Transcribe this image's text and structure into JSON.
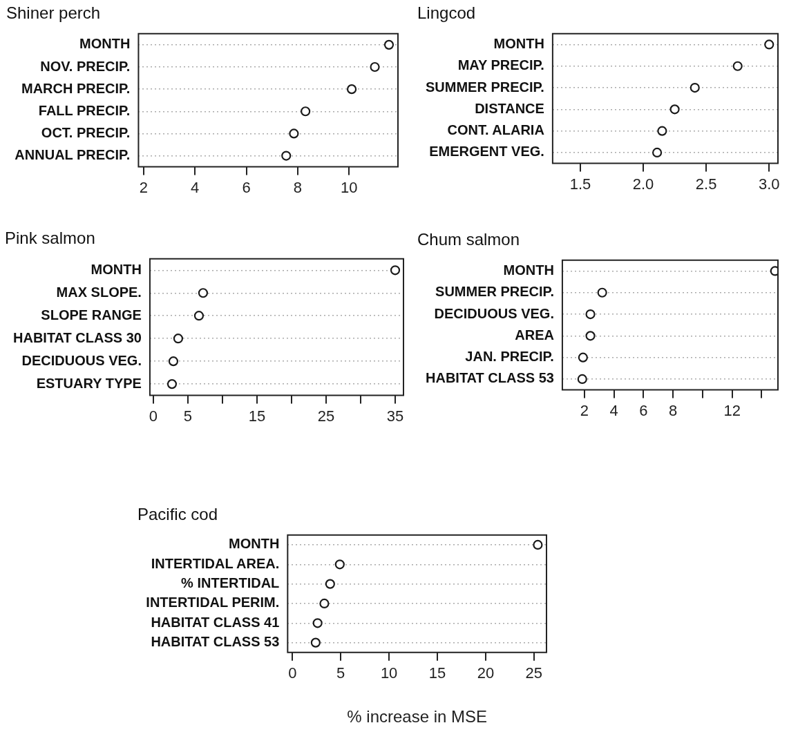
{
  "chart_data": [
    {
      "type": "scatter",
      "orientation": "horizontal",
      "title": "Shiner perch",
      "categories": [
        "MONTH",
        "NOV. PRECIP.",
        "MARCH PRECIP.",
        "FALL PRECIP.",
        "OCT. PRECIP.",
        "ANNUAL PRECIP."
      ],
      "values": [
        11.55,
        11.0,
        10.1,
        8.3,
        7.85,
        7.55
      ],
      "color": "#1a1a1a",
      "marker": "circle",
      "grid": "y",
      "xlim": [
        1.8,
        11.9
      ],
      "xticks": [
        2,
        4,
        6,
        8,
        10
      ]
    },
    {
      "type": "scatter",
      "orientation": "horizontal",
      "title": "Lingcod",
      "categories": [
        "MONTH",
        "MAY PRECIP.",
        "SUMMER PRECIP.",
        "DISTANCE",
        "CONT. ALARIA",
        "EMERGENT VEG."
      ],
      "values": [
        3.0,
        2.75,
        2.41,
        2.25,
        2.15,
        2.11
      ],
      "color": "#1a1a1a",
      "marker": "circle",
      "grid": "y",
      "xlim": [
        1.28,
        3.07
      ],
      "xticks": [
        {
          "value": 1.5,
          "label": "1.5"
        },
        {
          "value": 2,
          "label": "2.0"
        },
        {
          "value": 2.5,
          "label": "2.5"
        },
        {
          "value": 3,
          "label": "3.0"
        }
      ]
    },
    {
      "type": "scatter",
      "orientation": "horizontal",
      "title": "Pink salmon",
      "categories": [
        "MONTH",
        "MAX SLOPE.",
        "SLOPE RANGE",
        "HABITAT CLASS 30",
        "DECIDUOUS VEG.",
        "ESTUARY TYPE"
      ],
      "values": [
        35.0,
        7.2,
        6.6,
        3.6,
        2.9,
        2.7
      ],
      "color": "#1a1a1a",
      "marker": "circle",
      "grid": "y",
      "xlim": [
        -0.5,
        36.2
      ],
      "xticks": [
        0,
        5,
        {
          "value": 10,
          "label": null
        },
        15,
        {
          "value": 20,
          "label": null
        },
        25,
        {
          "value": 30,
          "label": null
        },
        35
      ]
    },
    {
      "type": "scatter",
      "orientation": "horizontal",
      "title": "Chum salmon",
      "categories": [
        "MONTH",
        "SUMMER PRECIP.",
        "DECIDUOUS VEG.",
        "AREA",
        "JAN. PRECIP.",
        "HABITAT CLASS 53"
      ],
      "values": [
        14.9,
        3.2,
        2.4,
        2.4,
        1.9,
        1.85
      ],
      "color": "#1a1a1a",
      "marker": "circle",
      "grid": "y",
      "xlim": [
        0.5,
        15.1
      ],
      "xticks": [
        2,
        4,
        6,
        8,
        {
          "value": 10,
          "label": null
        },
        12,
        {
          "value": 14,
          "label": null
        }
      ]
    },
    {
      "type": "scatter",
      "orientation": "horizontal",
      "title": "Pacific cod",
      "xlabel": "% increase in MSE",
      "categories": [
        "MONTH",
        "INTERTIDAL AREA.",
        "% INTERTIDAL",
        "INTERTIDAL PERIM.",
        "HABITAT CLASS 41",
        "HABITAT CLASS 53"
      ],
      "values": [
        25.4,
        4.9,
        3.9,
        3.3,
        2.6,
        2.4
      ],
      "color": "#1a1a1a",
      "marker": "circle",
      "grid": "y",
      "xlim": [
        -0.5,
        26.3
      ],
      "xticks": [
        0,
        5,
        10,
        15,
        20,
        25
      ]
    }
  ]
}
